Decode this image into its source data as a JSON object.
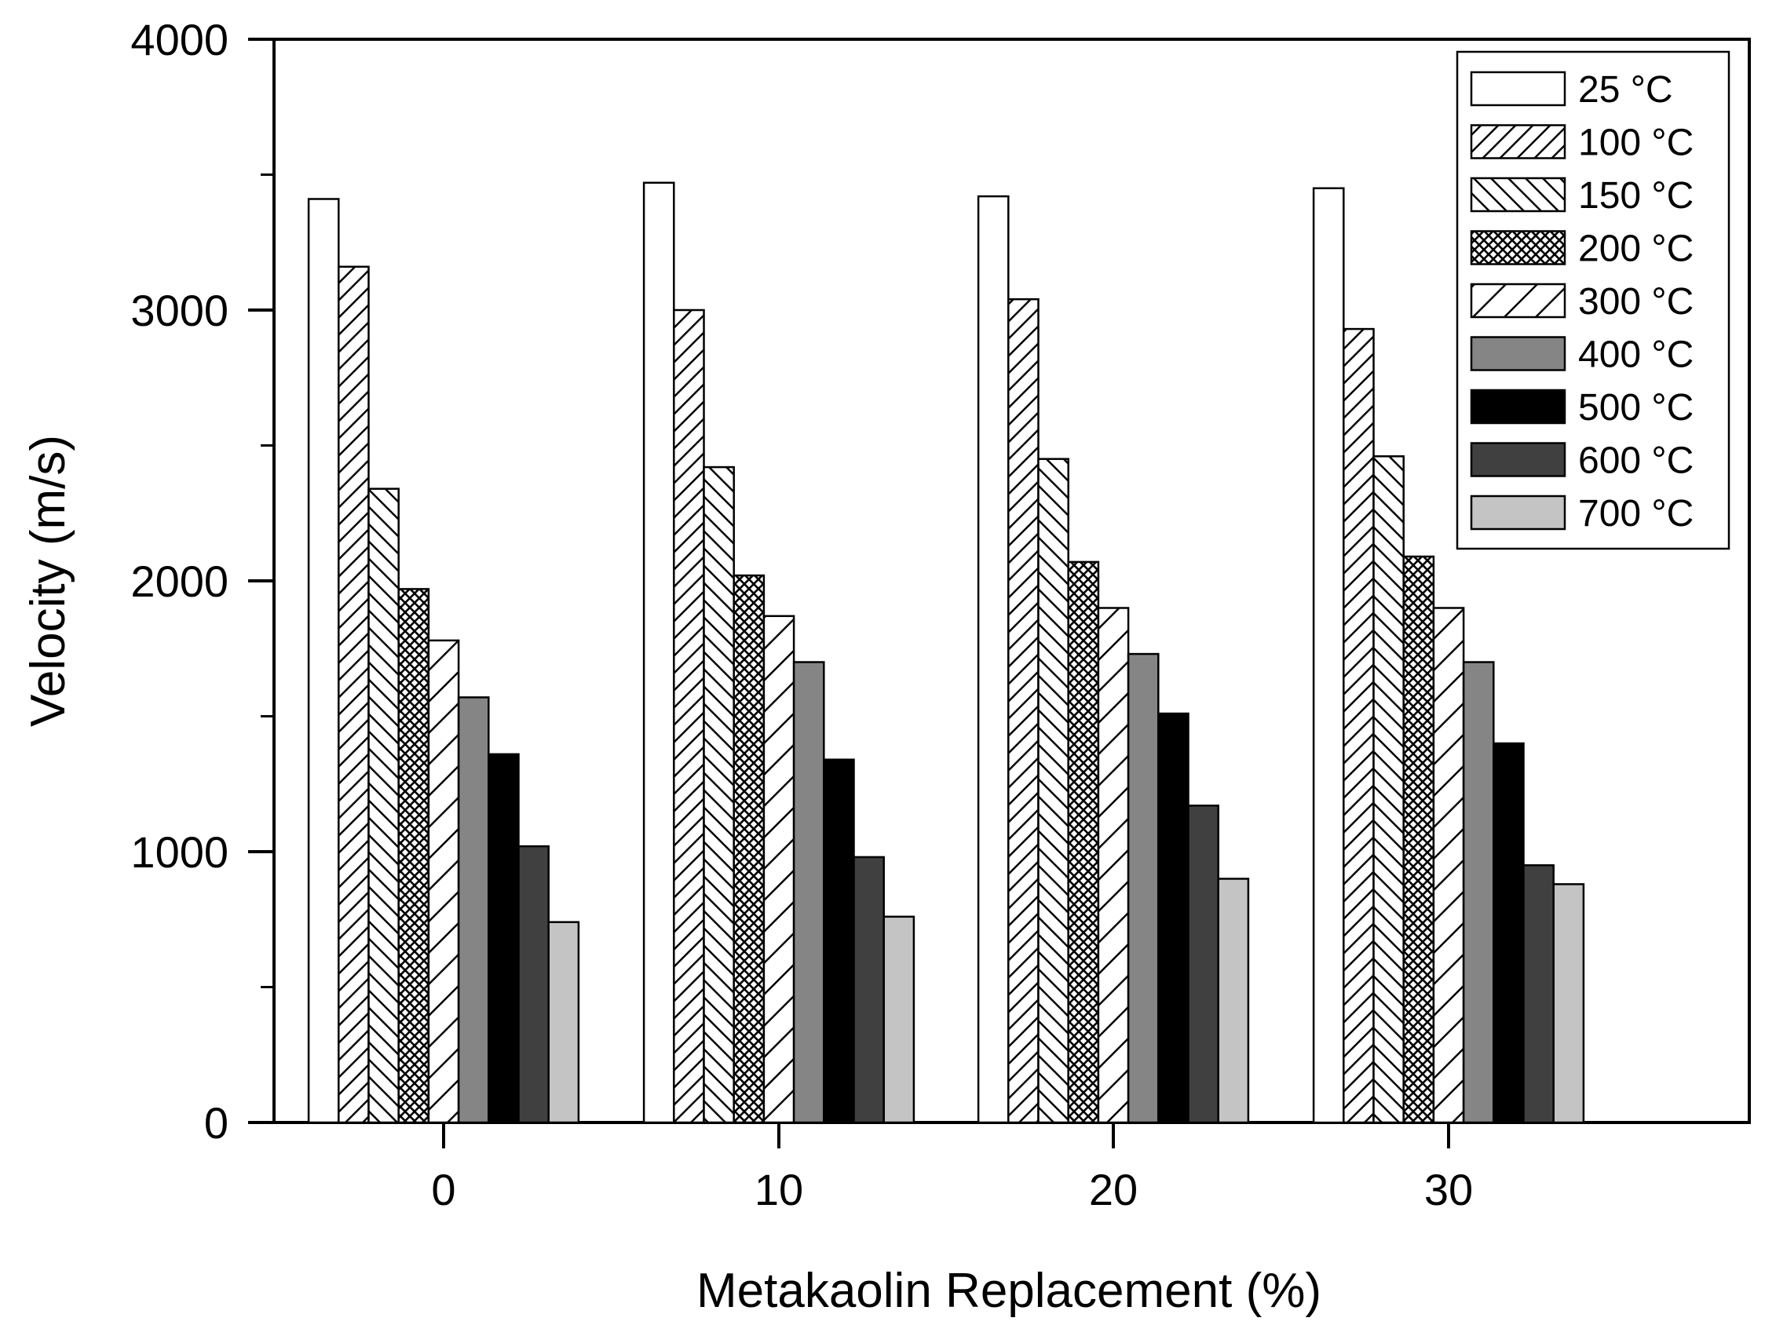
{
  "chart_data": {
    "type": "bar",
    "title": "",
    "xlabel": "Metakaolin Replacement (%)",
    "ylabel": "Velocity (m/s)",
    "ylim": [
      0,
      4000
    ],
    "yticks": [
      "0",
      "1000",
      "2000",
      "3000",
      "4000"
    ],
    "categories": [
      "0",
      "10",
      "20",
      "30"
    ],
    "legend_position": "top-right",
    "grid": false,
    "series": [
      {
        "name": "25 °C",
        "pattern": "solid",
        "color": "#ffffff",
        "values": [
          3410,
          3470,
          3420,
          3450
        ]
      },
      {
        "name": "100 °C",
        "pattern": "fwd",
        "color": "#ffffff",
        "values": [
          3160,
          3000,
          3040,
          2930
        ]
      },
      {
        "name": "150 °C",
        "pattern": "back",
        "color": "#ffffff",
        "values": [
          2340,
          2420,
          2450,
          2460
        ]
      },
      {
        "name": "200 °C",
        "pattern": "cross",
        "color": "#ffffff",
        "values": [
          1970,
          2020,
          2070,
          2090
        ]
      },
      {
        "name": "300 °C",
        "pattern": "fwdwide",
        "color": "#ffffff",
        "values": [
          1780,
          1870,
          1900,
          1900
        ]
      },
      {
        "name": "400 °C",
        "pattern": "solid",
        "color": "#858585",
        "values": [
          1570,
          1700,
          1730,
          1700
        ]
      },
      {
        "name": "500 °C",
        "pattern": "solid",
        "color": "#000000",
        "values": [
          1360,
          1340,
          1510,
          1400
        ]
      },
      {
        "name": "600 °C",
        "pattern": "solid",
        "color": "#404040",
        "values": [
          1020,
          980,
          1170,
          950
        ]
      },
      {
        "name": "700 °C",
        "pattern": "solid",
        "color": "#c4c4c4",
        "values": [
          740,
          760,
          900,
          880
        ]
      }
    ]
  }
}
